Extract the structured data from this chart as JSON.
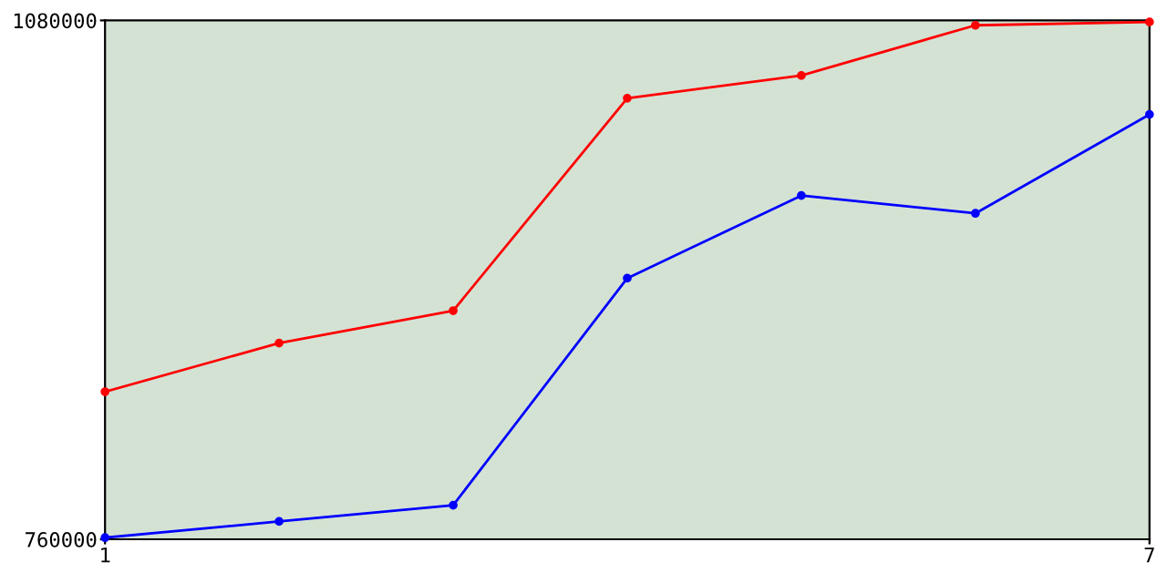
{
  "chart_data": {
    "type": "line",
    "x": [
      1,
      2,
      3,
      4,
      5,
      6,
      7
    ],
    "series": [
      {
        "color": "#ff0000",
        "values": [
          851000,
          881000,
          901000,
          1032000,
          1046000,
          1077000,
          1079000
        ]
      },
      {
        "color": "#0000ff",
        "values": [
          761000,
          771000,
          781000,
          921000,
          972000,
          961000,
          1022000
        ]
      }
    ],
    "xlim": [
      1,
      7
    ],
    "xticks": [
      1,
      7
    ],
    "ylim": [
      760000,
      1080000
    ],
    "yticks": [
      760000,
      1080000
    ],
    "marker": "circle",
    "grid": false,
    "legend": false
  }
}
